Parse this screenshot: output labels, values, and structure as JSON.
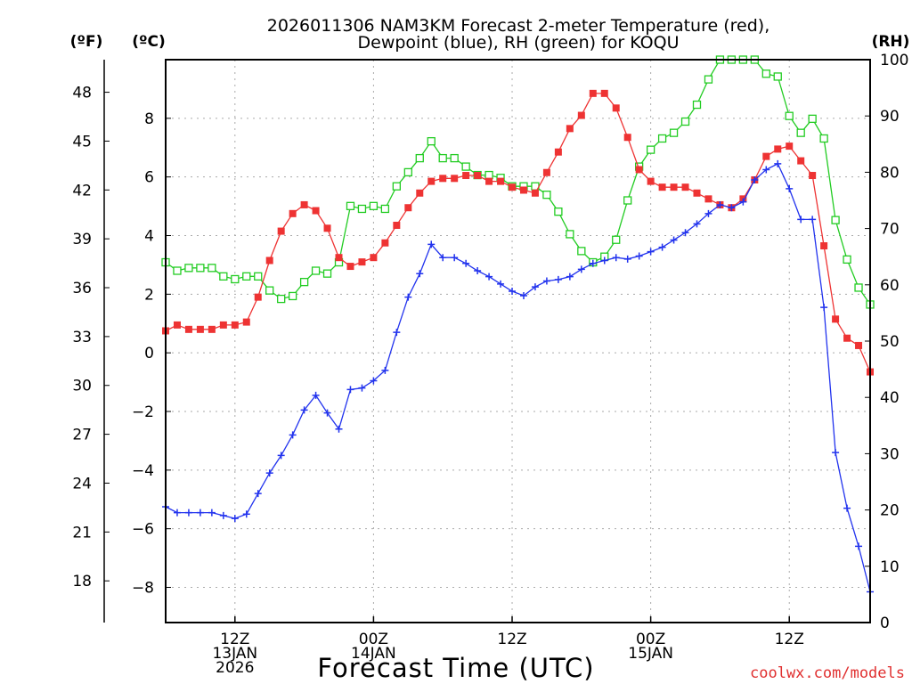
{
  "chart_data": {
    "type": "line",
    "title_lines": [
      "2026011306 NAM3KM Forecast 2-meter Temperature (red),",
      "Dewpoint (blue), RH (green) for KOQU"
    ],
    "xlabel": "Forecast Time (UTC)",
    "credit": "coolwx.com/models",
    "unit_labels": {
      "fahrenheit": "(ºF)",
      "celsius": "(ºC)",
      "rh": "(RH)"
    },
    "x_range_hours": [
      0,
      61
    ],
    "x_ticks": [
      {
        "hour": 6,
        "lines": [
          "12Z",
          "13JAN",
          "2026"
        ]
      },
      {
        "hour": 18,
        "lines": [
          "00Z",
          "14JAN"
        ]
      },
      {
        "hour": 30,
        "lines": [
          "12Z"
        ]
      },
      {
        "hour": 42,
        "lines": [
          "00Z",
          "15JAN"
        ]
      },
      {
        "hour": 54,
        "lines": [
          "12Z"
        ]
      }
    ],
    "celsius_axis": {
      "range": [
        -9.2,
        10
      ],
      "ticks": [
        -8,
        -6,
        -4,
        -2,
        0,
        2,
        4,
        6,
        8
      ],
      "tick_labels": [
        "−8",
        "−6",
        "−4",
        "−2",
        "0",
        "2",
        "4",
        "6",
        "8"
      ]
    },
    "fahrenheit_axis": {
      "ticks": [
        18,
        21,
        24,
        27,
        30,
        33,
        36,
        39,
        42,
        45,
        48
      ]
    },
    "rh_axis": {
      "range": [
        0,
        100
      ],
      "ticks": [
        0,
        10,
        20,
        30,
        40,
        50,
        60,
        70,
        80,
        90,
        100
      ]
    },
    "series": [
      {
        "name": "2-meter Temperature",
        "units": "°C",
        "color": "#ee3333",
        "marker": "filled-square",
        "values": [
          0.75,
          0.95,
          0.8,
          0.8,
          0.8,
          0.95,
          0.95,
          1.05,
          1.9,
          3.15,
          4.15,
          4.75,
          5.05,
          4.85,
          4.25,
          3.25,
          2.95,
          3.1,
          3.25,
          3.75,
          4.35,
          4.95,
          5.45,
          5.85,
          5.95,
          5.95,
          6.05,
          6.05,
          5.85,
          5.85,
          5.65,
          5.55,
          5.45,
          6.15,
          6.85,
          7.65,
          8.1,
          8.85,
          8.85,
          8.35,
          7.35,
          6.25,
          5.85,
          5.65,
          5.65,
          5.65,
          5.45,
          5.25,
          5.05,
          4.95,
          5.25,
          5.9,
          6.7,
          6.95,
          7.05,
          6.55,
          6.05,
          3.65,
          1.15,
          0.5,
          0.25,
          -0.65
        ]
      },
      {
        "name": "Dewpoint",
        "units": "°C",
        "color": "#2233ee",
        "marker": "plus",
        "values": [
          -5.25,
          -5.45,
          -5.45,
          -5.45,
          -5.45,
          -5.55,
          -5.65,
          -5.5,
          -4.8,
          -4.1,
          -3.5,
          -2.8,
          -1.95,
          -1.45,
          -2.05,
          -2.6,
          -1.25,
          -1.2,
          -0.95,
          -0.6,
          0.7,
          1.9,
          2.7,
          3.7,
          3.25,
          3.25,
          3.05,
          2.8,
          2.6,
          2.35,
          2.1,
          1.95,
          2.25,
          2.45,
          2.5,
          2.6,
          2.85,
          3.05,
          3.15,
          3.25,
          3.2,
          3.3,
          3.45,
          3.6,
          3.85,
          4.1,
          4.4,
          4.75,
          5.05,
          4.95,
          5.15,
          5.9,
          6.25,
          6.45,
          5.6,
          4.55,
          4.55,
          1.55,
          -3.4,
          -5.3,
          -6.6,
          -8.15
        ]
      },
      {
        "name": "RH",
        "units": "%",
        "color": "#22cc22",
        "marker": "open-square",
        "values": [
          64,
          62.5,
          63,
          63,
          63,
          61.5,
          61,
          61.5,
          61.5,
          59,
          57.5,
          58,
          60.5,
          62.5,
          62,
          64,
          74,
          73.5,
          74,
          73.5,
          77.5,
          80,
          82.5,
          85.5,
          82.5,
          82.5,
          81,
          79.5,
          79.5,
          79,
          77.5,
          77.5,
          77.5,
          76,
          73,
          69,
          66,
          64,
          65,
          68,
          75,
          81,
          84,
          86,
          87,
          89,
          92,
          96.5,
          100,
          100,
          100,
          100,
          97.5,
          97,
          90,
          87,
          89.5,
          86,
          71.5,
          64.5,
          59.5,
          56.5
        ]
      }
    ]
  }
}
